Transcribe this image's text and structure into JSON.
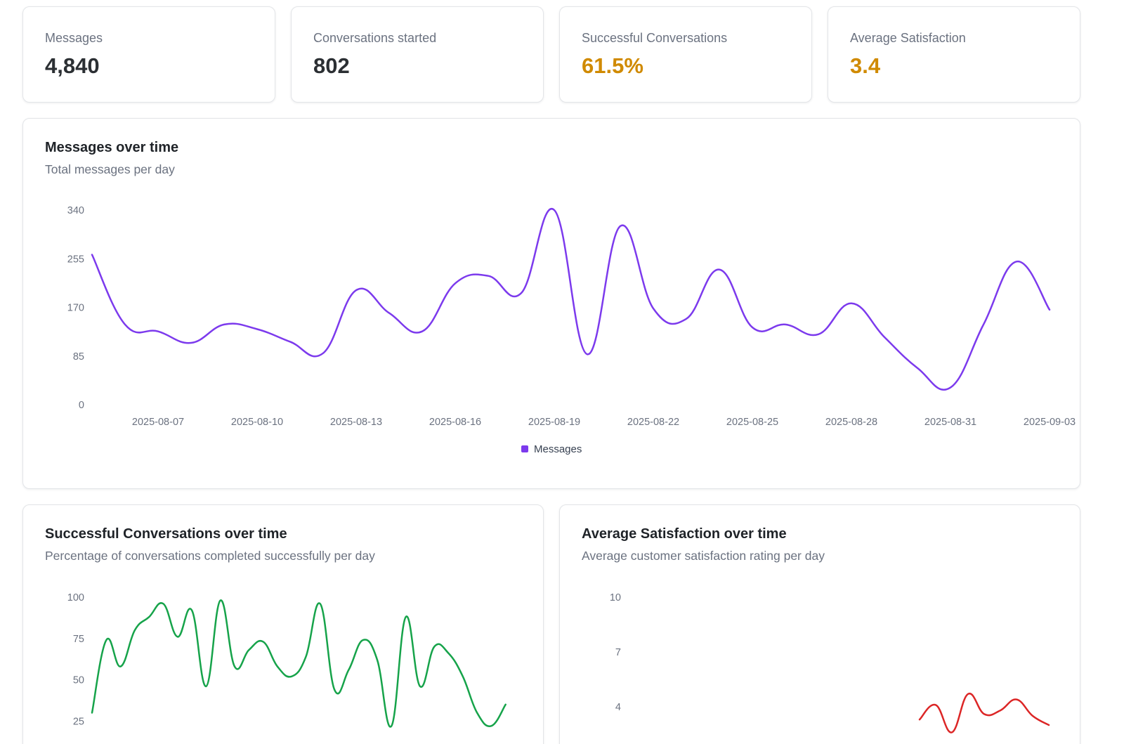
{
  "kpis": [
    {
      "label": "Messages",
      "value": "4,840",
      "color": "#2b2f33"
    },
    {
      "label": "Conversations started",
      "value": "802",
      "color": "#2b2f33"
    },
    {
      "label": "Successful Conversations",
      "value": "61.5%",
      "color": "#d08a00"
    },
    {
      "label": "Average Satisfaction",
      "value": "3.4",
      "color": "#d08a00"
    }
  ],
  "charts": {
    "messages": {
      "title": "Messages over time",
      "subtitle": "Total messages per day",
      "legend_label": "Messages"
    },
    "success": {
      "title": "Successful Conversations over time",
      "subtitle": "Percentage of conversations completed successfully per day"
    },
    "satisfaction": {
      "title": "Average Satisfaction over time",
      "subtitle": "Average customer satisfaction rating per day"
    }
  },
  "chart_data": [
    {
      "type": "line",
      "title": "Messages over time",
      "subtitle": "Total messages per day",
      "color": "#7c3aed",
      "legend": {
        "position": "bottom",
        "entries": [
          "Messages"
        ]
      },
      "grid": false,
      "ylim": [
        0,
        340
      ],
      "yticks": [
        0,
        85,
        170,
        255,
        340
      ],
      "xticks": [
        "2025-08-07",
        "2025-08-10",
        "2025-08-13",
        "2025-08-16",
        "2025-08-19",
        "2025-08-22",
        "2025-08-25",
        "2025-08-28",
        "2025-08-31",
        "2025-09-03"
      ],
      "x": [
        "2025-08-05",
        "2025-08-06",
        "2025-08-07",
        "2025-08-08",
        "2025-08-09",
        "2025-08-10",
        "2025-08-11",
        "2025-08-12",
        "2025-08-13",
        "2025-08-14",
        "2025-08-15",
        "2025-08-16",
        "2025-08-17",
        "2025-08-18",
        "2025-08-19",
        "2025-08-20",
        "2025-08-21",
        "2025-08-22",
        "2025-08-23",
        "2025-08-24",
        "2025-08-25",
        "2025-08-26",
        "2025-08-27",
        "2025-08-28",
        "2025-08-29",
        "2025-08-30",
        "2025-08-31",
        "2025-09-01",
        "2025-09-02",
        "2025-09-03"
      ],
      "series": [
        {
          "name": "Messages",
          "values": [
            262,
            140,
            128,
            108,
            140,
            132,
            110,
            90,
            200,
            160,
            128,
            212,
            225,
            195,
            340,
            88,
            312,
            168,
            150,
            236,
            135,
            140,
            123,
            177,
            118,
            64,
            30,
            140,
            250,
            166
          ]
        }
      ]
    },
    {
      "type": "line",
      "title": "Successful Conversations over time",
      "subtitle": "Percentage of conversations completed successfully per day",
      "color": "#16a34a",
      "grid": false,
      "ylim": [
        0,
        100
      ],
      "yticks": [
        25,
        50,
        75,
        100
      ],
      "x": [
        "2025-08-05",
        "2025-08-06",
        "2025-08-07",
        "2025-08-08",
        "2025-08-09",
        "2025-08-10",
        "2025-08-11",
        "2025-08-12",
        "2025-08-13",
        "2025-08-14",
        "2025-08-15",
        "2025-08-16",
        "2025-08-17",
        "2025-08-18",
        "2025-08-19",
        "2025-08-20",
        "2025-08-21",
        "2025-08-22",
        "2025-08-23",
        "2025-08-24",
        "2025-08-25",
        "2025-08-26",
        "2025-08-27",
        "2025-08-28",
        "2025-08-29",
        "2025-08-30",
        "2025-08-31",
        "2025-09-01",
        "2025-09-02",
        "2025-09-03"
      ],
      "series": [
        {
          "values": [
            30,
            74,
            58,
            80,
            88,
            96,
            76,
            92,
            46,
            98,
            58,
            68,
            73,
            58,
            52,
            64,
            96,
            44,
            56,
            74,
            62,
            22,
            88,
            46,
            70,
            66,
            52,
            30,
            22,
            35
          ]
        }
      ]
    },
    {
      "type": "line",
      "title": "Average Satisfaction over time",
      "subtitle": "Average customer satisfaction rating per day",
      "color": "#dc2626",
      "grid": false,
      "ylim": [
        1,
        10
      ],
      "yticks": [
        4,
        7,
        10
      ],
      "x": [
        "2025-08-26",
        "2025-08-27",
        "2025-08-28",
        "2025-08-29",
        "2025-08-30",
        "2025-08-31",
        "2025-09-01",
        "2025-09-02",
        "2025-09-03"
      ],
      "series": [
        {
          "values": [
            3.3,
            4.1,
            2.6,
            4.7,
            3.6,
            3.8,
            4.4,
            3.5,
            3.0
          ]
        }
      ]
    }
  ]
}
